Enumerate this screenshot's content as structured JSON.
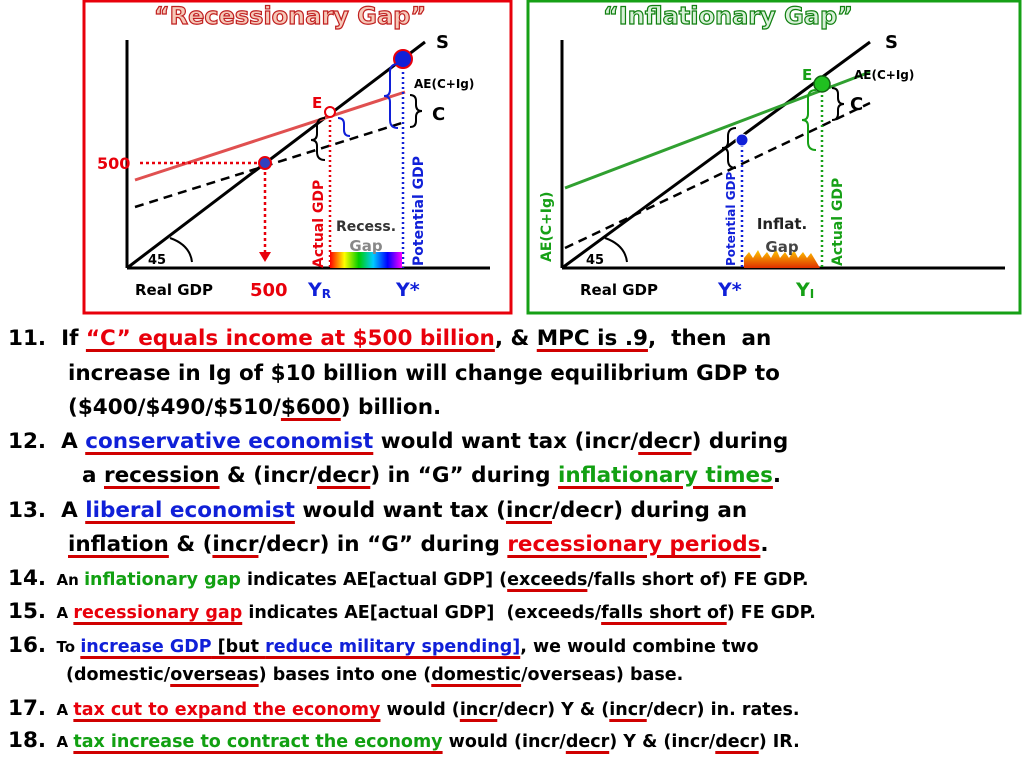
{
  "diagrams": [
    {
      "title": "“Recessionary Gap”",
      "supply": "S",
      "ae": "AE(C+Ig)",
      "equilibrium": "E",
      "consumption": "C",
      "income_label": "500",
      "output_label": "500",
      "actual": "Actual GDP",
      "potential": "Potential GDP",
      "gap": [
        "Recess.",
        "Gap"
      ],
      "angle": "45",
      "x_axis": "Real GDP",
      "y_r": {
        "symbol": "Y",
        "subscript": "R"
      },
      "y_star": "Y*"
    },
    {
      "title": "“Inflationary Gap”",
      "supply": "S",
      "ae": "AE(C+Ig)",
      "equilibrium": "E",
      "consumption": "C",
      "y_axis": "AE(C+Ig)",
      "potential": "Potential GDP",
      "actual": "Actual GDP",
      "gap": [
        "Inflat.",
        "Gap"
      ],
      "angle": "45",
      "x_axis": "Real GDP",
      "y_star": "Y*",
      "y_i": {
        "symbol": "Y",
        "subscript": "I"
      }
    }
  ],
  "questions": [
    {
      "lines": [
        [
          "11.",
          "  If ",
          "“C” equals income at $500 billion",
          ", & ",
          "MPC is .9",
          ",  then  an"
        ],
        [
          "increase in Ig of $10 billion will change equilibrium GDP to"
        ],
        [
          "($400/$490/$510/",
          "$600",
          ") billion."
        ]
      ]
    },
    {
      "lines": [
        [
          "12.",
          "  A ",
          "conservative economist",
          " would want tax (incr/",
          "decr",
          ") during"
        ],
        [
          "a ",
          "recession",
          " & (incr/",
          "decr",
          ") in “G” during ",
          "inflationary times",
          "."
        ]
      ]
    },
    {
      "lines": [
        [
          "13.",
          "  A ",
          "liberal economist",
          " would want tax (",
          "incr",
          "/decr) during an"
        ],
        [
          "inflation",
          " & (",
          "incr",
          "/decr) in “G” during ",
          "recessionary periods",
          "."
        ]
      ]
    },
    {
      "lines": [
        [
          "14.",
          "  An ",
          "inflationary gap",
          " indicates AE[actual GDP] (",
          "exceeds",
          "/falls short of) FE GDP."
        ]
      ]
    },
    {
      "lines": [
        [
          "15.",
          "  A ",
          "recessionary gap",
          " indicates AE[actual GDP]  (exceeds/",
          "falls short of",
          ") FE GDP."
        ]
      ]
    },
    {
      "lines": [
        [
          "16.",
          "  To ",
          "increase GDP",
          " [but ",
          "reduce military spending]",
          ", we would combine two"
        ],
        [
          "(domestic/",
          "overseas",
          ") bases into one (",
          "domestic",
          "/overseas) base."
        ]
      ]
    },
    {
      "lines": [
        [
          "17.",
          "  A ",
          "tax cut to expand the economy",
          " would (",
          "incr",
          "/decr) Y & (",
          "incr",
          "/decr) in. rates."
        ]
      ]
    },
    {
      "lines": [
        [
          "18.",
          "  A ",
          "tax increase to contract the economy",
          " would (incr/",
          "decr",
          ") Y & (incr/",
          "decr",
          ") IR."
        ]
      ]
    }
  ]
}
